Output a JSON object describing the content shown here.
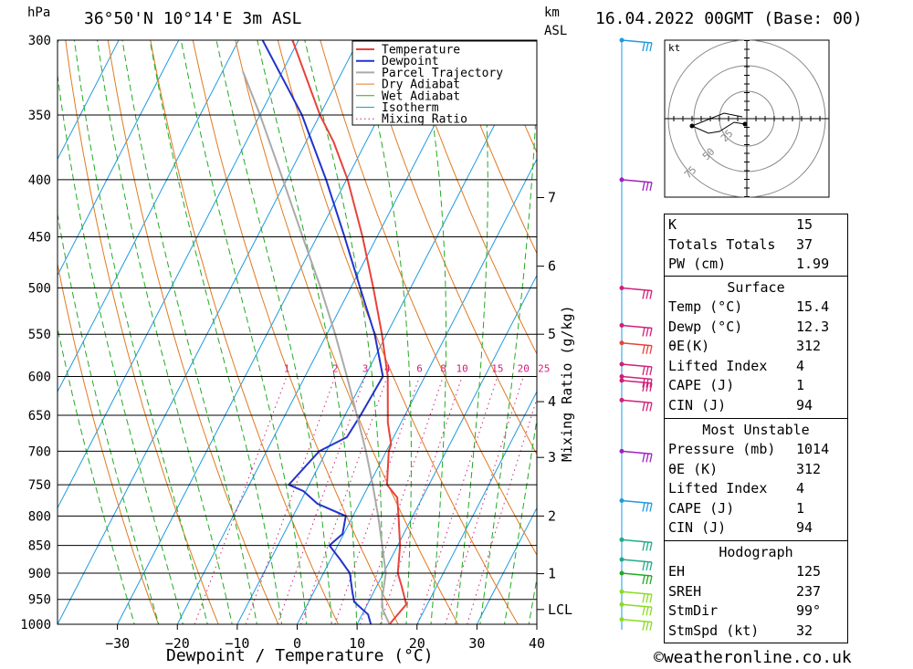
{
  "header": {
    "location": "36°50'N  10°14'E  3m  ASL",
    "datetime": "16.04.2022  00GMT  (Base: 00)",
    "pressure_unit": "hPa",
    "km_unit": "km",
    "asl_unit": "ASL"
  },
  "footer": {
    "copyright": "©weatheronline.co.uk"
  },
  "colors": {
    "temperature": "#e8423a",
    "dewpoint": "#2233cc",
    "parcel": "#aaaaaa",
    "dry_adiabat": "#e07a20",
    "wet_adiabat": "#22aa22",
    "isotherm": "#1e9ae0",
    "mixing_ratio": "#d0207a"
  },
  "chart_data": {
    "type": "line",
    "title": "",
    "xlabel": "Dewpoint / Temperature (°C)",
    "ylabel": "hPa",
    "xlim": [
      -40,
      40
    ],
    "ylim": [
      1000,
      300
    ],
    "y_log_scale": true,
    "x_ticks": [
      -30,
      -20,
      -10,
      0,
      10,
      20,
      30,
      40
    ],
    "pressure_levels": [
      300,
      350,
      400,
      450,
      500,
      550,
      600,
      650,
      700,
      750,
      800,
      850,
      900,
      950,
      1000
    ],
    "km_ticks": [
      {
        "p": 415,
        "label": "7"
      },
      {
        "p": 478,
        "label": "6"
      },
      {
        "p": 550,
        "label": "5"
      },
      {
        "p": 632,
        "label": "4"
      },
      {
        "p": 709,
        "label": "3"
      },
      {
        "p": 800,
        "label": "2"
      },
      {
        "p": 901,
        "label": "1"
      },
      {
        "p": 970,
        "label": "LCL"
      }
    ],
    "mixing_ratio_axis_label": "Mixing Ratio (g/kg)",
    "mixing_ratio_labels": [
      "1",
      "2",
      "3",
      "4",
      "6",
      "8",
      "10",
      "15",
      "20",
      "25"
    ],
    "mixing_ratio_values": [
      1,
      2,
      3,
      4,
      6,
      8,
      10,
      15,
      20,
      25
    ],
    "legend": [
      "Temperature",
      "Dewpoint",
      "Parcel Trajectory",
      "Dry Adiabat",
      "Wet Adiabat",
      "Isotherm",
      "Mixing Ratio"
    ],
    "legend_position": "top-right",
    "series": [
      {
        "name": "Temperature",
        "points": [
          [
            1000,
            15.4
          ],
          [
            985,
            15.8
          ],
          [
            960,
            16.5
          ],
          [
            925,
            14.2
          ],
          [
            900,
            12.4
          ],
          [
            850,
            10.4
          ],
          [
            800,
            7.6
          ],
          [
            770,
            5.8
          ],
          [
            750,
            3.0
          ],
          [
            700,
            0.4
          ],
          [
            690,
            0.2
          ],
          [
            660,
            -2.2
          ],
          [
            600,
            -6.2
          ],
          [
            550,
            -10.8
          ],
          [
            500,
            -16.2
          ],
          [
            450,
            -22.4
          ],
          [
            400,
            -29.8
          ],
          [
            370,
            -35.4
          ],
          [
            350,
            -40.0
          ],
          [
            300,
            -51.0
          ]
        ]
      },
      {
        "name": "Dewpoint",
        "points": [
          [
            1000,
            12.3
          ],
          [
            980,
            11.0
          ],
          [
            955,
            7.6
          ],
          [
            935,
            6.4
          ],
          [
            900,
            4.4
          ],
          [
            875,
            1.6
          ],
          [
            850,
            -1.4
          ],
          [
            830,
            -0.2
          ],
          [
            800,
            -1.2
          ],
          [
            780,
            -7.0
          ],
          [
            760,
            -10.4
          ],
          [
            750,
            -13.4
          ],
          [
            700,
            -11.2
          ],
          [
            680,
            -7.8
          ],
          [
            650,
            -7.4
          ],
          [
            600,
            -7.0
          ],
          [
            550,
            -12.0
          ],
          [
            500,
            -18.4
          ],
          [
            450,
            -25.4
          ],
          [
            400,
            -33.4
          ],
          [
            370,
            -39.0
          ],
          [
            350,
            -43.0
          ],
          [
            300,
            -56.0
          ]
        ]
      },
      {
        "name": "Parcel Trajectory",
        "points": [
          [
            1000,
            15.4
          ],
          [
            970,
            13.0
          ],
          [
            950,
            12.0
          ],
          [
            900,
            10.4
          ],
          [
            850,
            7.4
          ],
          [
            800,
            4.2
          ],
          [
            750,
            0.6
          ],
          [
            700,
            -3.4
          ],
          [
            650,
            -8.0
          ],
          [
            600,
            -13.0
          ],
          [
            550,
            -18.6
          ],
          [
            500,
            -25.0
          ],
          [
            450,
            -32.4
          ],
          [
            400,
            -40.6
          ],
          [
            350,
            -50.0
          ],
          [
            320,
            -56.6
          ]
        ]
      }
    ],
    "wind_barbs": [
      {
        "p": 300,
        "color": "#1e9ae0"
      },
      {
        "p": 400,
        "color": "#a020c0"
      },
      {
        "p": 500,
        "color": "#d0207a"
      },
      {
        "p": 540,
        "color": "#d0207a"
      },
      {
        "p": 560,
        "color": "#e8423a"
      },
      {
        "p": 585,
        "color": "#d0207a"
      },
      {
        "p": 600,
        "color": "#d0207a"
      },
      {
        "p": 605,
        "color": "#d0207a"
      },
      {
        "p": 630,
        "color": "#d0207a"
      },
      {
        "p": 700,
        "color": "#a020c0"
      },
      {
        "p": 775,
        "color": "#1e9ae0"
      },
      {
        "p": 840,
        "color": "#22aa88"
      },
      {
        "p": 875,
        "color": "#22aa88"
      },
      {
        "p": 900,
        "color": "#22aa22"
      },
      {
        "p": 935,
        "color": "#88dd22"
      },
      {
        "p": 960,
        "color": "#88dd22"
      },
      {
        "p": 990,
        "color": "#88dd22"
      }
    ],
    "hodograph": {
      "unit": "kt",
      "ring_labels": [
        "25",
        "50",
        "75"
      ],
      "points": [
        [
          -2,
          -6
        ],
        [
          -14,
          -4
        ],
        [
          -30,
          -14
        ],
        [
          -42,
          -16
        ],
        [
          -60,
          -8
        ],
        [
          -25,
          6
        ],
        [
          -5,
          2
        ]
      ]
    }
  },
  "indices": {
    "basic": [
      {
        "label": "K",
        "value": "15"
      },
      {
        "label": "Totals Totals",
        "value": "37"
      },
      {
        "label": "PW (cm)",
        "value": "1.99"
      }
    ],
    "surface_title": "Surface",
    "surface": [
      {
        "label": "Temp (°C)",
        "value": "15.4"
      },
      {
        "label": "Dewp (°C)",
        "value": "12.3"
      },
      {
        "label": "θE(K)",
        "value": "312"
      },
      {
        "label": "Lifted Index",
        "value": "4"
      },
      {
        "label": "CAPE (J)",
        "value": "1"
      },
      {
        "label": "CIN (J)",
        "value": "94"
      }
    ],
    "most_unstable_title": "Most Unstable",
    "most_unstable": [
      {
        "label": "Pressure (mb)",
        "value": "1014"
      },
      {
        "label": "θE (K)",
        "value": "312"
      },
      {
        "label": "Lifted Index",
        "value": "4"
      },
      {
        "label": "CAPE (J)",
        "value": "1"
      },
      {
        "label": "CIN (J)",
        "value": "94"
      }
    ],
    "hodograph_title": "Hodograph",
    "hodograph": [
      {
        "label": "EH",
        "value": "125"
      },
      {
        "label": "SREH",
        "value": "237"
      },
      {
        "label": "StmDir",
        "value": "99°"
      },
      {
        "label": "StmSpd (kt)",
        "value": "32"
      }
    ]
  }
}
